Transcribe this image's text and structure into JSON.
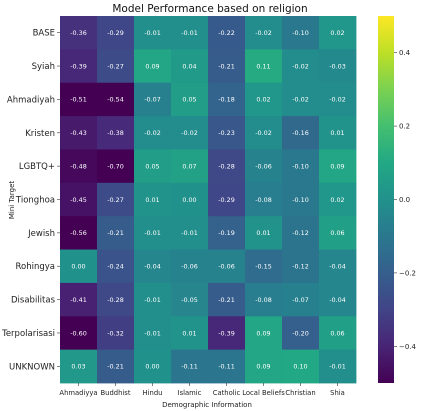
{
  "chart_data": {
    "type": "heatmap",
    "title": "Model Performance based on religion",
    "xlabel": "Demographic Information",
    "ylabel": "Mini Target",
    "columns": [
      "Ahmadiyya",
      "Buddhist",
      "Hindu",
      "Islamic",
      "Catholic",
      "Local Beliefs",
      "Christian",
      "Shia"
    ],
    "rows": [
      "BASE",
      "Syiah",
      "Ahmadiyah",
      "Kristen",
      "LGBTQ+",
      "Tionghoa",
      "Jewish",
      "Rohingya",
      "Disabilitas",
      "Terpolarisasi",
      "UNKNOWN"
    ],
    "values": [
      [
        -0.36,
        -0.29,
        -0.01,
        -0.01,
        -0.22,
        -0.02,
        -0.1,
        0.02
      ],
      [
        -0.39,
        -0.27,
        0.09,
        0.04,
        -0.21,
        0.11,
        -0.02,
        -0.03
      ],
      [
        -0.51,
        -0.54,
        -0.07,
        0.05,
        -0.18,
        0.02,
        -0.02,
        -0.02
      ],
      [
        -0.43,
        -0.38,
        -0.02,
        -0.02,
        -0.23,
        -0.02,
        -0.16,
        0.01
      ],
      [
        -0.48,
        -0.7,
        0.05,
        0.07,
        -0.28,
        -0.06,
        -0.1,
        0.09
      ],
      [
        -0.45,
        -0.27,
        0.01,
        0.0,
        -0.29,
        -0.08,
        -0.1,
        0.02
      ],
      [
        -0.56,
        -0.21,
        -0.01,
        -0.01,
        -0.19,
        0.01,
        -0.12,
        0.06
      ],
      [
        0.0,
        -0.24,
        -0.04,
        -0.06,
        -0.06,
        -0.15,
        -0.12,
        -0.04
      ],
      [
        -0.41,
        -0.28,
        -0.01,
        -0.05,
        -0.21,
        -0.08,
        -0.07,
        -0.04
      ],
      [
        -0.6,
        -0.32,
        -0.01,
        0.01,
        -0.39,
        0.09,
        -0.2,
        0.06
      ],
      [
        0.03,
        -0.21,
        0.0,
        -0.11,
        -0.11,
        0.09,
        0.1,
        -0.01
      ]
    ],
    "value_labels": [
      [
        "-0.36",
        "-0.29",
        "-0.01",
        "-0.01",
        "-0.22",
        "-0.02",
        "-0.10",
        "0.02"
      ],
      [
        "-0.39",
        "-0.27",
        "0.09",
        "0.04",
        "-0.21",
        "0.11",
        "-0.02",
        "-0.03"
      ],
      [
        "-0.51",
        "-0.54",
        "-0.07",
        "0.05",
        "-0.18",
        "0.02",
        "-0.02",
        "-0.02"
      ],
      [
        "-0.43",
        "-0.38",
        "-0.02",
        "-0.02",
        "-0.23",
        "-0.02",
        "-0.16",
        "0.01"
      ],
      [
        "-0.48",
        "-0.70",
        "0.05",
        "0.07",
        "-0.28",
        "-0.06",
        "-0.10",
        "0.09"
      ],
      [
        "-0.45",
        "-0.27",
        "0.01",
        "0.00",
        "-0.29",
        "-0.08",
        "-0.10",
        "0.02"
      ],
      [
        "-0.56",
        "-0.21",
        "-0.01",
        "-0.01",
        "-0.19",
        "0.01",
        "-0.12",
        "0.06"
      ],
      [
        "0.00",
        "-0.24",
        "-0.04",
        "-0.06",
        "-0.06",
        "-0.15",
        "-0.12",
        "-0.04"
      ],
      [
        "-0.41",
        "-0.28",
        "-0.01",
        "-0.05",
        "-0.21",
        "-0.08",
        "-0.07",
        "-0.04"
      ],
      [
        "-0.60",
        "-0.32",
        "-0.01",
        "0.01",
        "-0.39",
        "0.09",
        "-0.20",
        "0.06"
      ],
      [
        "0.03",
        "-0.21",
        "0.00",
        "-0.11",
        "-0.11",
        "0.09",
        "0.10",
        "-0.01"
      ]
    ],
    "colormap": "viridis",
    "vmin": -0.5,
    "vmax": 0.5,
    "colorbar_ticks": [
      0.4,
      0.2,
      0.0,
      -0.2,
      -0.4
    ],
    "colorbar_tick_labels": [
      "0.4",
      "0.2",
      "0.0",
      "−0.2",
      "−0.4"
    ],
    "grid": false,
    "legend": "colorbar-right"
  }
}
